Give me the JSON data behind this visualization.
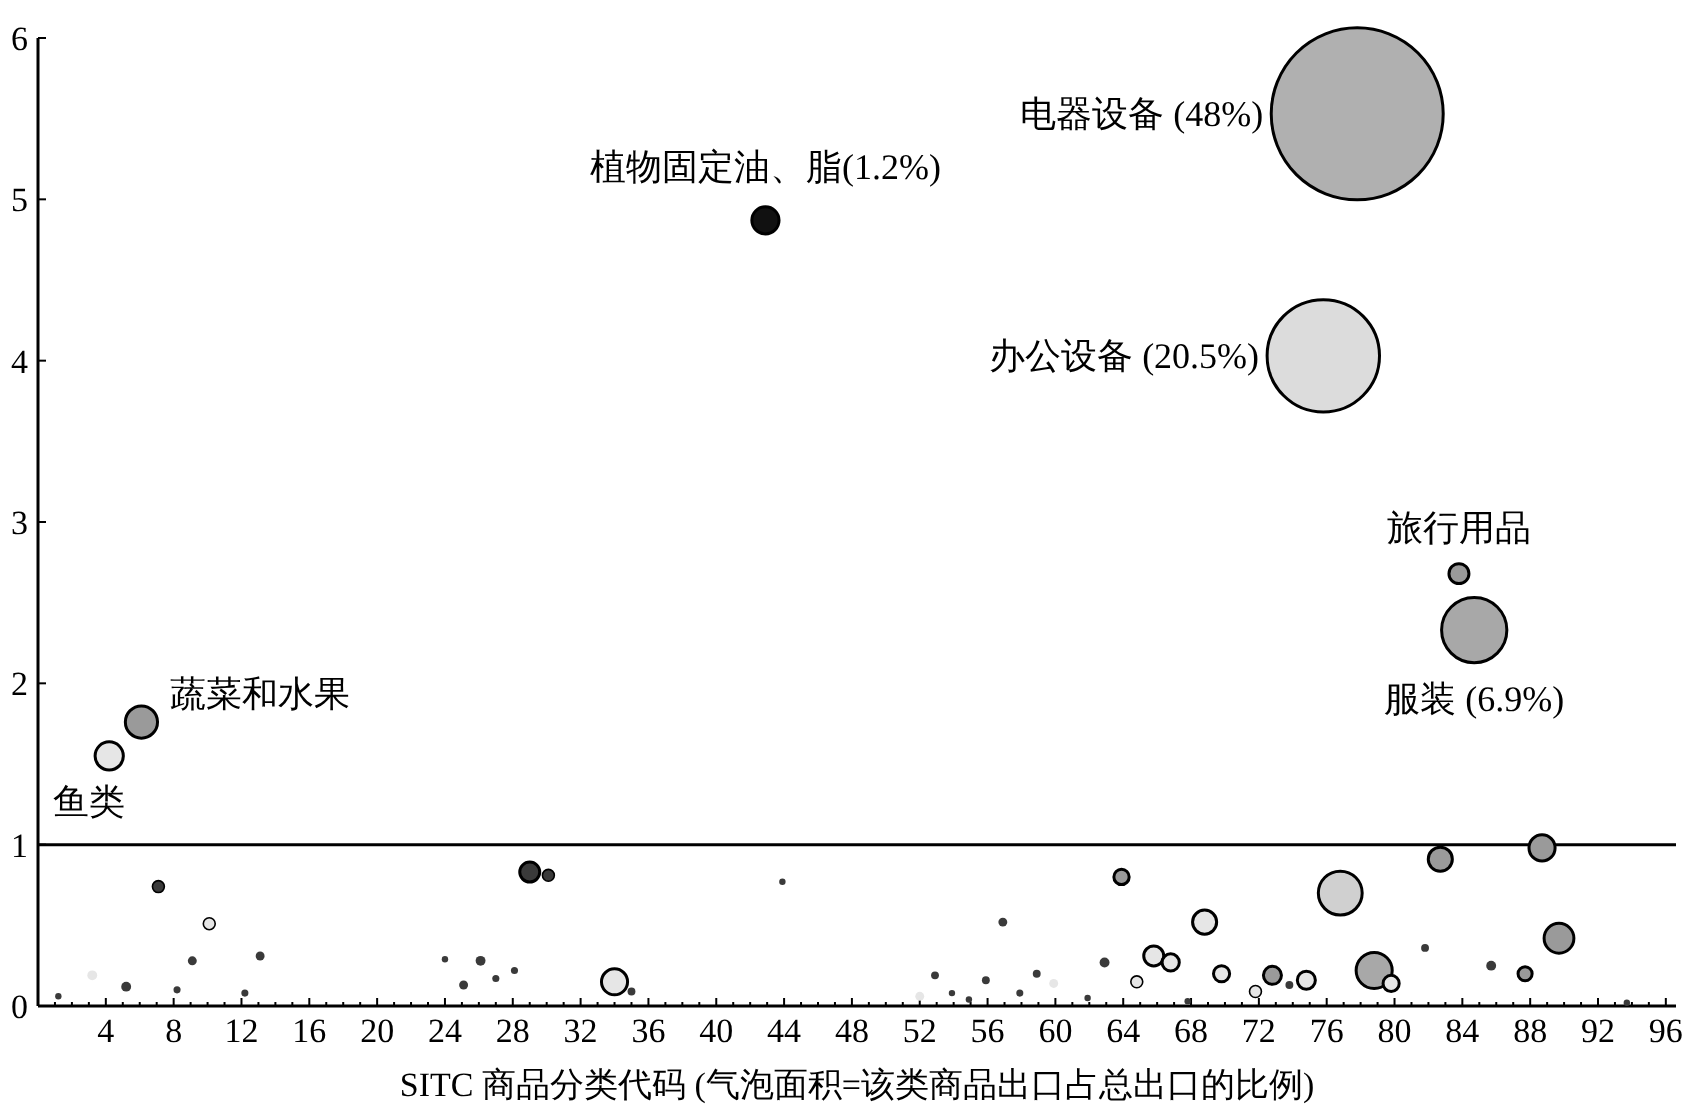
{
  "chart_data": {
    "type": "bubble",
    "xlabel": "SITC 商品分类代码 (气泡面积=该类商品出口占总出口的比例)",
    "x": [
      1.2,
      3.2,
      4.2,
      5.2,
      6.1,
      7.1,
      8.2,
      9.1,
      10.1,
      12.2,
      13.1,
      24.0,
      25.1,
      26.1,
      27.0,
      28.1,
      29.0,
      30.1,
      34.0,
      35.0,
      42.9,
      43.9,
      52.0,
      52.9,
      53.9,
      54.9,
      55.9,
      56.9,
      57.9,
      58.9,
      59.9,
      61.9,
      62.9,
      63.9,
      64.8,
      65.8,
      66.8,
      67.8,
      68.8,
      69.8,
      71.8,
      72.8,
      73.8,
      74.8,
      75.8,
      76.8,
      77.8,
      78.8,
      79.8,
      81.8,
      82.7,
      83.8,
      84.7,
      85.7,
      87.7,
      88.7,
      89.7,
      93.7
    ],
    "values": [
      0.06,
      0.19,
      1.55,
      0.12,
      1.76,
      0.74,
      0.1,
      0.28,
      0.51,
      0.08,
      0.31,
      0.29,
      0.13,
      0.28,
      0.17,
      0.22,
      0.83,
      0.81,
      0.15,
      0.09,
      4.87,
      0.77,
      0.06,
      0.19,
      0.08,
      0.04,
      0.16,
      0.52,
      0.08,
      0.2,
      0.14,
      0.05,
      0.27,
      0.8,
      0.15,
      0.31,
      0.27,
      0.03,
      0.52,
      0.2,
      0.09,
      0.19,
      0.13,
      0.16,
      4.03,
      0.7,
      5.53,
      0.22,
      0.14,
      0.36,
      0.91,
      2.68,
      2.33,
      0.25,
      0.2,
      0.98,
      0.42,
      0.02
    ],
    "sizes": [
      0.0013,
      0.0033,
      0.027,
      0.0033,
      0.035,
      0.0048,
      0.0017,
      0.0027,
      0.0048,
      0.0017,
      0.0027,
      0.0013,
      0.0027,
      0.0033,
      0.0017,
      0.0017,
      0.0135,
      0.0048,
      0.023,
      0.0021,
      0.025,
      0.0013,
      0.0027,
      0.0021,
      0.0008,
      0.0013,
      0.0021,
      0.0027,
      0.0017,
      0.0021,
      0.0027,
      0.0006,
      0.0033,
      0.0079,
      0.0048,
      0.0135,
      0.01,
      0.0006,
      0.0196,
      0.0088,
      0.0048,
      0.011,
      0.0021,
      0.011,
      0.427,
      0.065,
      1,
      0.044,
      0.0088,
      0.0021,
      0.0196,
      0.0135,
      0.144,
      0.0033,
      0.0067,
      0.023,
      0.03,
      0.0006
    ],
    "colors": [
      "#3a3a3a",
      "#e6e6e6",
      "#e6e6e6",
      "#3a3a3a",
      "#9a9a9a",
      "#3a3a3a",
      "#3a3a3a",
      "#3a3a3a",
      "#e6e6e6",
      "#3a3a3a",
      "#3a3a3a",
      "#3a3a3a",
      "#3a3a3a",
      "#3a3a3a",
      "#3a3a3a",
      "#3a3a3a",
      "#3a3a3a",
      "#3a3a3a",
      "#e6e6e6",
      "#3a3a3a",
      "#111111",
      "#3a3a3a",
      "#e6e6e6",
      "#3a3a3a",
      "#3a3a3a",
      "#3a3a3a",
      "#3a3a3a",
      "#3a3a3a",
      "#3a3a3a",
      "#3a3a3a",
      "#e6e6e6",
      "#3a3a3a",
      "#3a3a3a",
      "#9a9a9a",
      "#e6e6e6",
      "#e6e6e6",
      "#e6e6e6",
      "#3a3a3a",
      "#e6e6e6",
      "#e6e6e6",
      "#e6e6e6",
      "#9a9a9a",
      "#3a3a3a",
      "#e6e6e6",
      "#dcdcdc",
      "#d0d0d0",
      "#b0b0b0",
      "#a8a8a8",
      "#e6e6e6",
      "#3a3a3a",
      "#9a9a9a",
      "#9a9a9a",
      "#a8a8a8",
      "#3a3a3a",
      "#9a9a9a",
      "#9a9a9a",
      "#9a9a9a",
      "#3a3a3a"
    ],
    "annotations": [
      {
        "text": "电器设备 (48%)",
        "x": 77.8,
        "y": 5.53
      },
      {
        "text": "植物固定油、脂(1.2%)",
        "x": 42.9,
        "y": 4.87
      },
      {
        "text": "办公设备 (20.5%)",
        "x": 75.8,
        "y": 4.03
      },
      {
        "text": "旅行用品",
        "x": 83.8,
        "y": 2.68
      },
      {
        "text": "服装 (6.9%)",
        "x": 84.7,
        "y": 2.33
      },
      {
        "text": "蔬菜和水果",
        "x": 6.1,
        "y": 1.76
      },
      {
        "text": "鱼类",
        "x": 4.2,
        "y": 1.55
      }
    ],
    "ref_lines": [
      {
        "axis": "y",
        "value": 1
      }
    ],
    "xlim": [
      0,
      96.6
    ],
    "ylim": [
      0,
      6
    ],
    "xticks": [
      4,
      8,
      12,
      16,
      20,
      24,
      28,
      32,
      36,
      40,
      44,
      48,
      52,
      56,
      60,
      64,
      68,
      72,
      76,
      80,
      84,
      88,
      92,
      96
    ],
    "yticks": [
      0,
      1,
      2,
      3,
      4,
      5,
      6
    ]
  }
}
